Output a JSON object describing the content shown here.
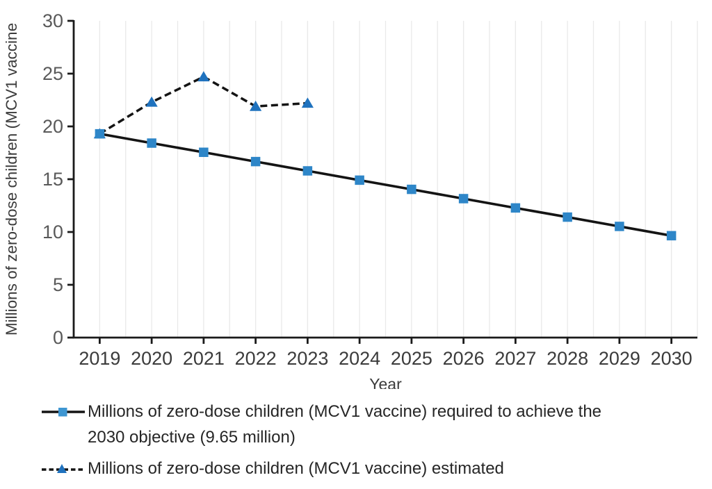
{
  "chart_data": {
    "type": "line",
    "title": "",
    "xlabel": "Year",
    "ylabel": "Millions of zero-dose children (MCV1 vaccine",
    "x": [
      2019,
      2020,
      2021,
      2022,
      2023,
      2024,
      2025,
      2026,
      2027,
      2028,
      2029,
      2030
    ],
    "ylim": [
      0,
      30
    ],
    "yticks": [
      0,
      5,
      10,
      15,
      20,
      25,
      30
    ],
    "grid": "light vertical gridlines at every half-year step",
    "legend_position": "bottom-left",
    "series": [
      {
        "name": "required",
        "legend_lines": [
          "Millions of zero-dose children (MCV1 vaccine) required to achieve the",
          "2030 objective (9.65 million)"
        ],
        "values": [
          19.3,
          18.42,
          17.55,
          16.67,
          15.79,
          14.91,
          14.04,
          13.16,
          12.28,
          11.41,
          10.53,
          9.65
        ],
        "line_style": "solid",
        "marker": "square",
        "marker_color": "#2E86C8",
        "line_color": "#141414"
      },
      {
        "name": "estimated",
        "legend_lines": [
          "Millions of zero-dose children (MCV1 vaccine) estimated"
        ],
        "values": [
          19.3,
          22.3,
          24.7,
          21.9,
          22.2,
          null,
          null,
          null,
          null,
          null,
          null,
          null
        ],
        "line_style": "dashed",
        "marker": "triangle",
        "marker_color": "#1F72BE",
        "line_color": "#141414"
      }
    ]
  },
  "colors": {
    "background": "#ffffff",
    "axis": "#1a1a1a",
    "gridline": "#e9e9e9",
    "y_tick_label": "#595959",
    "x_tick_label": "#3b3b3b",
    "axis_title": "#3b3b3b",
    "legend_text": "#262626",
    "square_marker": "#2E86C8",
    "triangle_marker": "#1F72BE"
  }
}
